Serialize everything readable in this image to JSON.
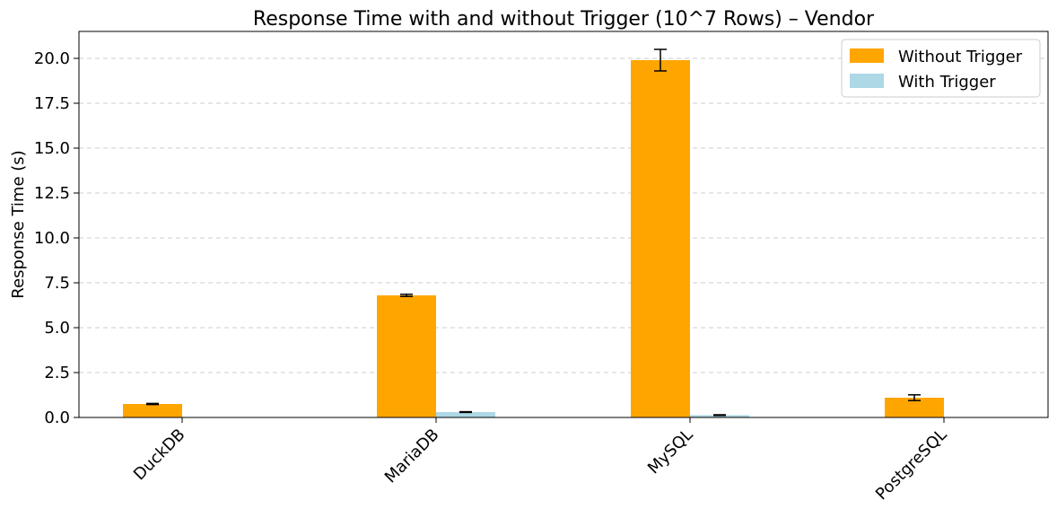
{
  "chart_data": {
    "type": "bar",
    "title": "Response Time with and without Trigger (10^7 Rows) – Vendor",
    "xlabel": "",
    "ylabel": "Response Time (s)",
    "categories": [
      "DuckDB",
      "MariaDB",
      "MySQL",
      "PostgreSQL"
    ],
    "ylim": [
      0,
      21.5
    ],
    "yticks": [
      0.0,
      2.5,
      5.0,
      7.5,
      10.0,
      12.5,
      15.0,
      17.5,
      20.0
    ],
    "ytick_labels": [
      "0.0",
      "2.5",
      "5.0",
      "7.5",
      "10.0",
      "12.5",
      "15.0",
      "17.5",
      "20.0"
    ],
    "grid": "y-dashed",
    "legend_position": "top-right",
    "series": [
      {
        "name": "Without Trigger",
        "color": "#ffa500",
        "values": [
          0.75,
          6.8,
          19.9,
          1.1
        ],
        "errors": [
          0.03,
          0.06,
          0.6,
          0.16
        ]
      },
      {
        "name": "With Trigger",
        "color": "#add8e6",
        "values": [
          0.0,
          0.3,
          0.13,
          0.0
        ],
        "errors": [
          0.0,
          0.02,
          0.02,
          0.0
        ]
      }
    ]
  }
}
